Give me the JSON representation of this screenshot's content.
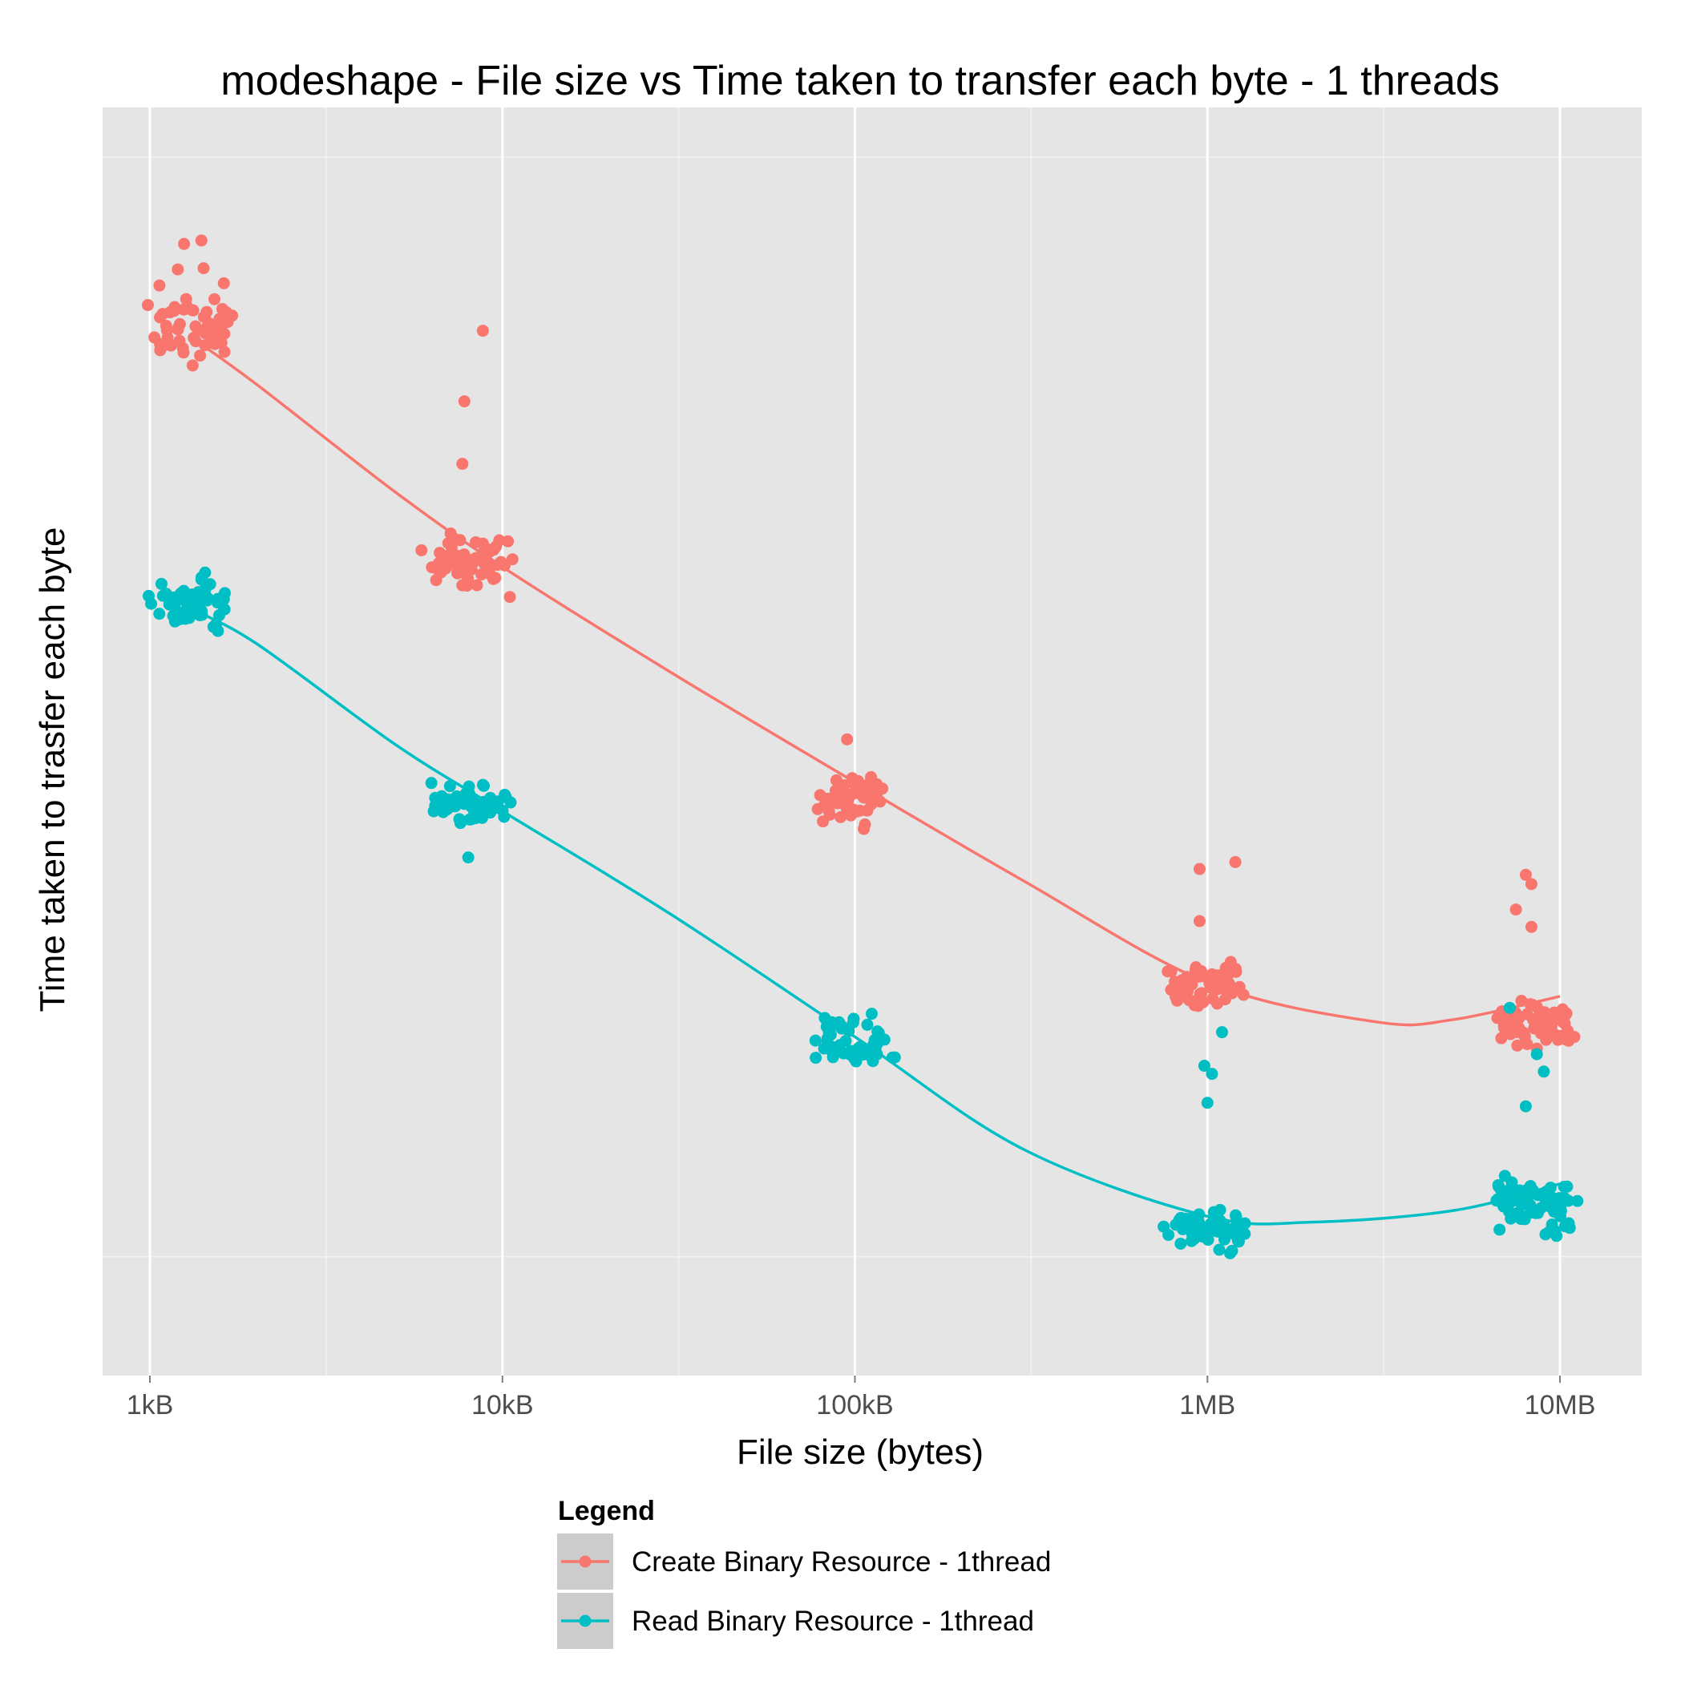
{
  "chart_data": {
    "type": "scatter",
    "title": "modeshape - File size vs Time taken to transfer each byte - 1 threads",
    "xlabel": "File size (bytes)",
    "ylabel": "Time taken to trasfer each byte",
    "x_scale": "log10",
    "x_ticks": [
      {
        "value": 1000,
        "label": "1kB"
      },
      {
        "value": 10000,
        "label": "10kB"
      },
      {
        "value": 100000,
        "label": "100kB"
      },
      {
        "value": 1000000,
        "label": "1MB"
      },
      {
        "value": 10000000,
        "label": "10MB"
      }
    ],
    "xlim": [
      1000,
      10000000
    ],
    "ylim": [
      0,
      100
    ],
    "y_tick_labels_shown": false,
    "grid": true,
    "legend": {
      "title": "Legend",
      "position": "bottom",
      "entries": [
        "Create Binary Resource - 1thread",
        "Read Binary Resource - 1thread"
      ]
    },
    "series": [
      {
        "name": "Create Binary Resource - 1thread",
        "color": "#F8766D",
        "clusters": [
          {
            "x": 1300,
            "y_center": 85.5,
            "spread": 4.5,
            "n": 60,
            "outliers": [
              {
                "x": 1250,
                "y": 92.5
              },
              {
                "x": 1400,
                "y": 92.8
              },
              {
                "x": 1200,
                "y": 90.3
              },
              {
                "x": 1420,
                "y": 90.4
              }
            ]
          },
          {
            "x": 8000,
            "y_center": 65.0,
            "spread": 3.5,
            "n": 60,
            "outliers": [
              {
                "x": 8800,
                "y": 85.0
              },
              {
                "x": 7800,
                "y": 78.9
              },
              {
                "x": 7700,
                "y": 73.5
              },
              {
                "x": 10500,
                "y": 62.0
              }
            ]
          },
          {
            "x": 100000,
            "y_center": 44.5,
            "spread": 3.0,
            "n": 55,
            "outliers": [
              {
                "x": 95000,
                "y": 49.7
              }
            ]
          },
          {
            "x": 1000000,
            "y_center": 28.2,
            "spread": 3.0,
            "n": 60,
            "outliers": [
              {
                "x": 950000,
                "y": 38.5
              },
              {
                "x": 1200000,
                "y": 39.1
              },
              {
                "x": 950000,
                "y": 34.0
              }
            ]
          },
          {
            "x": 8500000,
            "y_center": 25.0,
            "spread": 3.0,
            "n": 65,
            "outliers": [
              {
                "x": 8000000,
                "y": 38.0
              },
              {
                "x": 8300000,
                "y": 37.2
              },
              {
                "x": 7500000,
                "y": 35.0
              },
              {
                "x": 8300000,
                "y": 33.5
              }
            ]
          }
        ],
        "trend_line": {
          "x": [
            1300,
            2000,
            5000,
            10000,
            30000,
            100000,
            300000,
            1000000,
            3000000,
            5000000,
            10000000
          ],
          "y": [
            84.5,
            80.4,
            71.0,
            64.6,
            55.5,
            46.0,
            37.5,
            28.7,
            25.3,
            25.5,
            27.5
          ]
        }
      },
      {
        "name": "Read Binary Resource - 1thread",
        "color": "#00BFC4",
        "clusters": [
          {
            "x": 1300,
            "y_center": 61.5,
            "spread": 3.5,
            "n": 55,
            "outliers": [
              {
                "x": 1400,
                "y": 63.5
              }
            ]
          },
          {
            "x": 8000,
            "y_center": 44.0,
            "spread": 2.5,
            "n": 55,
            "outliers": [
              {
                "x": 8000,
                "y": 39.5
              }
            ]
          },
          {
            "x": 100000,
            "y_center": 23.5,
            "spread": 3.0,
            "n": 55,
            "outliers": []
          },
          {
            "x": 1000000,
            "y_center": 7.5,
            "spread": 3.0,
            "n": 60,
            "outliers": [
              {
                "x": 1100000,
                "y": 24.4
              },
              {
                "x": 980000,
                "y": 21.5
              },
              {
                "x": 1000000,
                "y": 18.3
              },
              {
                "x": 1030000,
                "y": 20.8
              }
            ]
          },
          {
            "x": 8500000,
            "y_center": 9.5,
            "spread": 4.0,
            "n": 70,
            "outliers": [
              {
                "x": 7200000,
                "y": 26.5
              },
              {
                "x": 8600000,
                "y": 22.5
              },
              {
                "x": 9000000,
                "y": 21.0
              },
              {
                "x": 8000000,
                "y": 18.0
              }
            ]
          }
        ],
        "trend_line": {
          "x": [
            1300,
            2000,
            5000,
            10000,
            30000,
            100000,
            300000,
            1000000,
            2000000,
            5000000,
            10000000
          ],
          "y": [
            61.0,
            58.0,
            49.2,
            43.5,
            34.6,
            24.0,
            14.3,
            8.5,
            8.0,
            9.0,
            11.3
          ]
        }
      }
    ]
  }
}
